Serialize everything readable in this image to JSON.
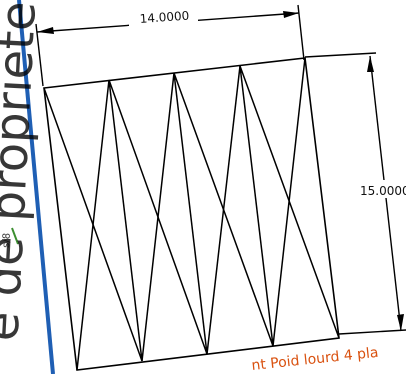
{
  "drawing": {
    "top_dimension": "14.0000",
    "right_dimension": "15.0000",
    "bottom_note": "nt Poid lourd 4 pla",
    "side_text": "e de propriete",
    "side_small_text": "s/8",
    "line_color": "#000000",
    "border_blue": "#1f5fb4",
    "note_color": "#d9510f"
  }
}
